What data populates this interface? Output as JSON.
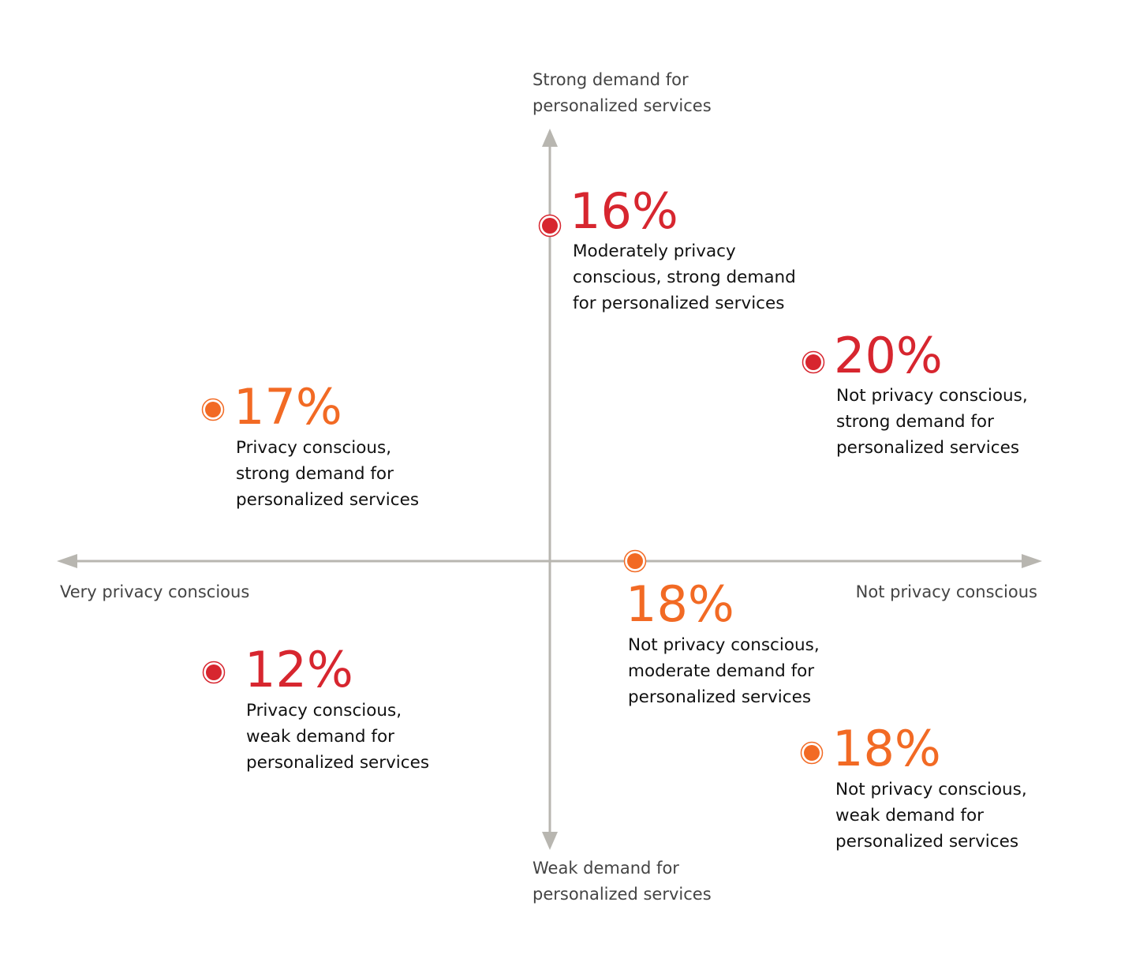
{
  "axes": {
    "top": [
      "Strong demand for",
      "personalized services"
    ],
    "bottom": [
      "Weak demand for",
      "personalized services"
    ],
    "left": "Very privacy conscious",
    "right": "Not privacy conscious"
  },
  "segments": [
    {
      "percent": "16%",
      "color": "#d7262f",
      "description": [
        "Moderately privacy",
        "conscious, strong demand",
        "for personalized services"
      ]
    },
    {
      "percent": "20%",
      "color": "#d7262f",
      "description": [
        "Not privacy conscious,",
        "strong demand for",
        "personalized services"
      ]
    },
    {
      "percent": "17%",
      "color": "#f26a24",
      "description": [
        "Privacy conscious,",
        "strong demand for",
        "personalized services"
      ]
    },
    {
      "percent": "18%",
      "color": "#f26a24",
      "description": [
        "Not privacy conscious,",
        "moderate demand for",
        "personalized services"
      ]
    },
    {
      "percent": "12%",
      "color": "#d7262f",
      "description": [
        "Privacy conscious,",
        "weak demand for",
        "personalized services"
      ]
    },
    {
      "percent": "18%",
      "color": "#f26a24",
      "description": [
        "Not privacy conscious,",
        "weak demand for",
        "personalized services"
      ]
    }
  ]
}
